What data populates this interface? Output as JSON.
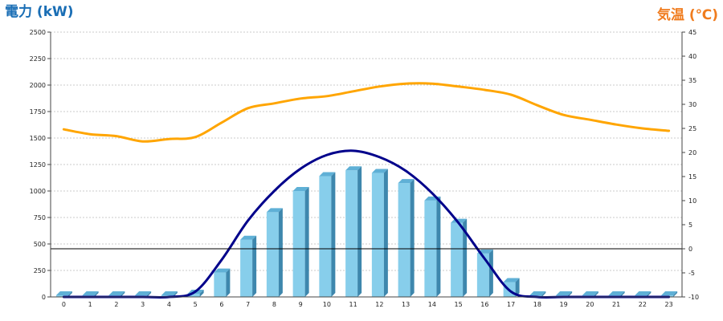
{
  "chart_data": {
    "type": "bar",
    "left_axis_title": "電力 (kW)",
    "right_axis_title": "気温 (℃)",
    "categories": [
      "0",
      "1",
      "2",
      "3",
      "4",
      "5",
      "6",
      "7",
      "8",
      "9",
      "10",
      "11",
      "12",
      "13",
      "14",
      "15",
      "16",
      "17",
      "18",
      "19",
      "20",
      "21",
      "22",
      "23"
    ],
    "left_ylim": [
      0,
      2500
    ],
    "left_ticks": [
      0,
      250,
      500,
      750,
      1000,
      1250,
      1500,
      1750,
      2000,
      2250,
      2500
    ],
    "right_ylim": [
      -10,
      45
    ],
    "right_ticks": [
      -10,
      -5,
      0,
      5,
      10,
      15,
      20,
      25,
      30,
      35,
      40,
      45
    ],
    "grid": true,
    "series": [
      {
        "kind": "bar",
        "axis": "left",
        "values": [
          15,
          15,
          15,
          15,
          15,
          30,
          230,
          540,
          800,
          1000,
          1140,
          1195,
          1170,
          1075,
          910,
          700,
          410,
          140,
          15,
          15,
          15,
          15,
          15,
          15
        ],
        "color": "#87ceeb"
      },
      {
        "kind": "line",
        "axis": "left",
        "values": [
          0,
          0,
          0,
          0,
          0,
          50,
          350,
          720,
          1000,
          1210,
          1340,
          1380,
          1320,
          1190,
          980,
          700,
          360,
          50,
          0,
          0,
          0,
          0,
          0,
          0
        ],
        "color": "#00008b"
      },
      {
        "kind": "line",
        "axis": "right",
        "values": [
          24.8,
          23.8,
          23.4,
          22.3,
          22.8,
          23.2,
          26.2,
          29.2,
          30.2,
          31.2,
          31.7,
          32.7,
          33.7,
          34.3,
          34.3,
          33.7,
          33.0,
          32.0,
          29.8,
          27.8,
          26.8,
          25.8,
          25.0,
          24.5
        ],
        "color": "#ffa500"
      }
    ],
    "reference_line": {
      "axis": "right",
      "value": 0
    },
    "colors": {
      "left_title": "#1a6eb5",
      "right_title": "#f07c1e"
    }
  }
}
